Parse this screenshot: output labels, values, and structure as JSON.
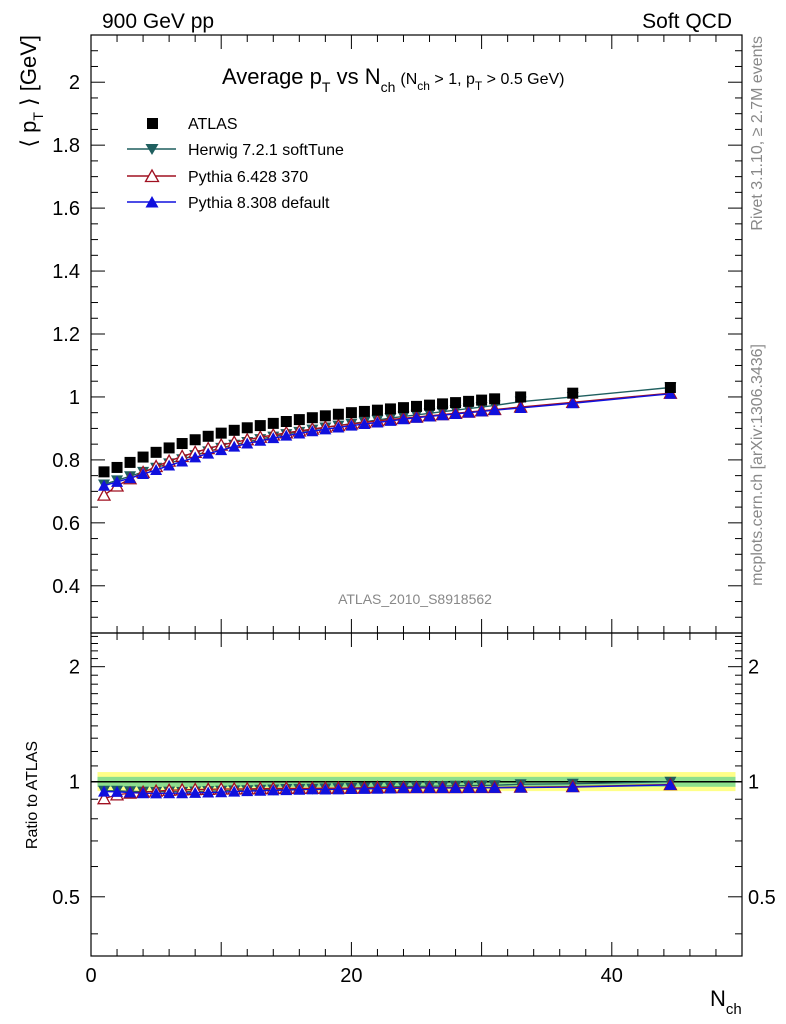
{
  "header": {
    "left": "900 GeV pp",
    "right": "Soft QCD"
  },
  "side_labels": {
    "top": "Rivet 3.1.10, ≥ 2.7M events",
    "bottom": "mcplots.cern.ch [arXiv:1306.3436]"
  },
  "watermark": "ATLAS_2010_S8918562",
  "chart_data": [
    {
      "type": "scatter",
      "panel": "main",
      "title_main": "Average p",
      "title_sub_t": "T",
      "title_vs": " vs N",
      "title_sub_ch": "ch",
      "title_cuts": "(N",
      "title_cuts_ch": "ch",
      "title_cuts_mid": " > 1, p",
      "title_cuts_t": "T",
      "title_cuts_end": " > 0.5 GeV)",
      "ylabel": "⟨ p",
      "ylabel_sub": "T",
      "ylabel_end": " ⟩ [GeV]",
      "xlim": [
        0,
        50
      ],
      "ylim": [
        0.25,
        2.15
      ],
      "yticks": [
        0.4,
        0.6,
        0.8,
        1,
        1.2,
        1.4,
        1.6,
        1.8,
        2
      ],
      "ytick_labels": [
        "0.4",
        "0.6",
        "0.8",
        "1",
        "1.2",
        "1.4",
        "1.6",
        "1.8",
        "2"
      ],
      "legend": [
        "ATLAS",
        "Herwig 7.2.1 softTune",
        "Pythia 6.428 370",
        "Pythia 8.308 default"
      ],
      "legend_position": "top-left",
      "x": [
        1,
        2,
        3,
        4,
        5,
        6,
        7,
        8,
        9,
        10,
        11,
        12,
        13,
        14,
        15,
        16,
        17,
        18,
        19,
        20,
        21,
        22,
        23,
        24,
        25,
        26,
        27,
        28,
        29,
        30,
        31,
        33,
        37,
        44.5
      ],
      "series": [
        {
          "name": "ATLAS",
          "color": "#000000",
          "marker": "square",
          "values": [
            0.762,
            0.776,
            0.792,
            0.809,
            0.824,
            0.838,
            0.852,
            0.864,
            0.875,
            0.885,
            0.894,
            0.902,
            0.909,
            0.916,
            0.922,
            0.928,
            0.934,
            0.94,
            0.945,
            0.95,
            0.954,
            0.958,
            0.962,
            0.966,
            0.97,
            0.974,
            0.978,
            0.982,
            0.986,
            0.99,
            0.994,
            1.0,
            1.012,
            1.03
          ]
        },
        {
          "name": "Herwig 7.2.1 softTune",
          "color": "#1f5f5f",
          "marker": "triangle-down",
          "values": [
            0.722,
            0.735,
            0.748,
            0.762,
            0.775,
            0.789,
            0.802,
            0.815,
            0.827,
            0.838,
            0.848,
            0.857,
            0.866,
            0.874,
            0.882,
            0.889,
            0.896,
            0.903,
            0.909,
            0.915,
            0.921,
            0.927,
            0.933,
            0.938,
            0.943,
            0.948,
            0.953,
            0.958,
            0.963,
            0.968,
            0.973,
            0.985,
            1.0,
            1.03
          ]
        },
        {
          "name": "Pythia 6.428 370",
          "color": "#a01020",
          "marker": "triangle-open",
          "values": [
            0.688,
            0.717,
            0.74,
            0.76,
            0.779,
            0.796,
            0.811,
            0.824,
            0.836,
            0.847,
            0.856,
            0.864,
            0.872,
            0.879,
            0.886,
            0.892,
            0.898,
            0.904,
            0.909,
            0.914,
            0.919,
            0.924,
            0.928,
            0.932,
            0.936,
            0.94,
            0.944,
            0.948,
            0.952,
            0.956,
            0.96,
            0.968,
            0.983,
            1.012
          ]
        },
        {
          "name": "Pythia 8.308 default",
          "color": "#1010dd",
          "marker": "triangle-up",
          "values": [
            0.718,
            0.73,
            0.742,
            0.755,
            0.768,
            0.782,
            0.795,
            0.808,
            0.82,
            0.831,
            0.842,
            0.852,
            0.861,
            0.869,
            0.877,
            0.884,
            0.891,
            0.897,
            0.903,
            0.909,
            0.914,
            0.919,
            0.924,
            0.929,
            0.934,
            0.938,
            0.942,
            0.946,
            0.95,
            0.954,
            0.958,
            0.965,
            0.98,
            1.01
          ]
        }
      ]
    },
    {
      "type": "scatter",
      "panel": "ratio",
      "ylabel": "Ratio to ATLAS",
      "xlabel": "N",
      "xlabel_sub": "ch",
      "xlim": [
        0,
        50
      ],
      "ylim": [
        0.35,
        2.45
      ],
      "yscale": "log",
      "xticks": [
        0,
        20,
        40
      ],
      "xtick_labels": [
        "0",
        "20",
        "40"
      ],
      "yticks": [
        0.5,
        1,
        2
      ],
      "ytick_labels": [
        "0.5",
        "1",
        "2"
      ],
      "band_1sigma_color": "#8ddf8d",
      "band_2sigma_color": "#ffff88",
      "band_1sigma": [
        0.97,
        1.03
      ],
      "band_2sigma": [
        0.945,
        1.06
      ],
      "series": [
        {
          "name": "Herwig 7.2.1 softTune",
          "color": "#1f5f5f",
          "marker": "triangle-down",
          "values": [
            0.947,
            0.947,
            0.944,
            0.942,
            0.941,
            0.942,
            0.941,
            0.943,
            0.945,
            0.947,
            0.949,
            0.95,
            0.953,
            0.954,
            0.957,
            0.958,
            0.959,
            0.961,
            0.962,
            0.963,
            0.965,
            0.968,
            0.97,
            0.971,
            0.972,
            0.973,
            0.974,
            0.976,
            0.977,
            0.978,
            0.979,
            0.985,
            0.988,
            1.0
          ]
        },
        {
          "name": "Pythia 6.428 370",
          "color": "#a01020",
          "marker": "triangle-open",
          "values": [
            0.903,
            0.924,
            0.934,
            0.939,
            0.945,
            0.95,
            0.952,
            0.954,
            0.955,
            0.957,
            0.957,
            0.958,
            0.959,
            0.96,
            0.961,
            0.961,
            0.961,
            0.962,
            0.962,
            0.962,
            0.963,
            0.965,
            0.965,
            0.965,
            0.965,
            0.965,
            0.965,
            0.965,
            0.966,
            0.966,
            0.966,
            0.968,
            0.971,
            0.983
          ]
        },
        {
          "name": "Pythia 8.308 default",
          "color": "#1010dd",
          "marker": "triangle-up",
          "values": [
            0.942,
            0.941,
            0.937,
            0.933,
            0.932,
            0.933,
            0.933,
            0.935,
            0.937,
            0.939,
            0.942,
            0.945,
            0.947,
            0.949,
            0.951,
            0.953,
            0.955,
            0.954,
            0.955,
            0.957,
            0.958,
            0.959,
            0.96,
            0.962,
            0.963,
            0.963,
            0.963,
            0.963,
            0.963,
            0.964,
            0.964,
            0.965,
            0.968,
            0.981
          ]
        }
      ]
    }
  ]
}
